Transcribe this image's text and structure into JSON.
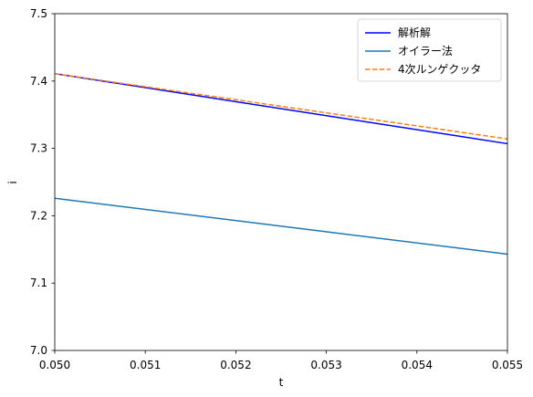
{
  "chart_data": {
    "type": "line",
    "xlabel": "t",
    "ylabel": "i",
    "xlim": [
      0.05,
      0.055
    ],
    "ylim": [
      7.0,
      7.5
    ],
    "x_ticks": [
      "0.050",
      "0.051",
      "0.052",
      "0.053",
      "0.054",
      "0.055"
    ],
    "y_ticks": [
      "7.0",
      "7.1",
      "7.2",
      "7.3",
      "7.4",
      "7.5"
    ],
    "grid": false,
    "legend_position": "top-right",
    "series": [
      {
        "name": "解析解",
        "color": "#0000ff",
        "dash": "solid",
        "x": [
          0.05,
          0.055
        ],
        "y": [
          7.411,
          7.307
        ]
      },
      {
        "name": "オイラー法",
        "color": "#1f77b4",
        "dash": "solid",
        "x": [
          0.05,
          0.055
        ],
        "y": [
          7.226,
          7.143
        ]
      },
      {
        "name": "4次ルンゲクッタ",
        "color": "#ff7f0e",
        "dash": "dashed",
        "x": [
          0.05,
          0.055
        ],
        "y": [
          7.411,
          7.314
        ]
      }
    ]
  }
}
